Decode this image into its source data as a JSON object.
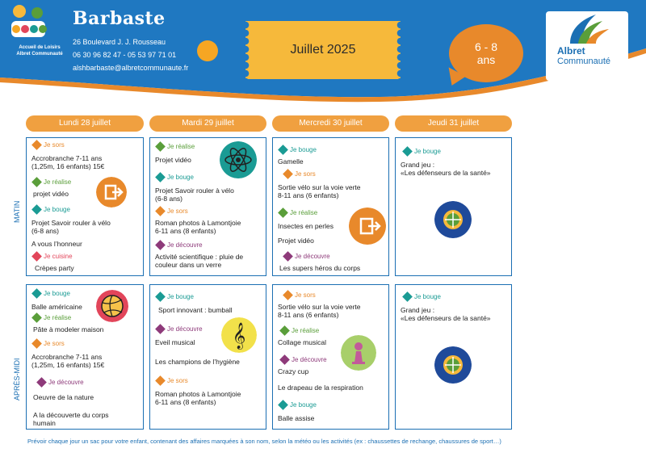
{
  "header": {
    "brand": "Barbaste",
    "address": "26 Boulevard J. J. Rousseau",
    "phones": "06 30 96 82 47 - 05 53 97 71 01",
    "email": "alshbarbaste@albretcommunaute.fr",
    "alsh_logo_line1": "Accueil de Loisirs",
    "alsh_logo_line2": "Albret Communauté",
    "month": "Juillet 2025",
    "age_line1": "6 - 8",
    "age_line2": "ans",
    "partner_line1": "Albret",
    "partner_line2": "Communauté"
  },
  "days": [
    "Lundi 28 juillet",
    "Mardi 29 juillet",
    "Mercredi 30 juillet",
    "Jeudi 31 juillet"
  ],
  "rows": {
    "morning": "MATIN",
    "afternoon": "APRÈS-MIDI"
  },
  "colors": {
    "brand_blue": "#1f78c1",
    "orange": "#e8892b",
    "green": "#5a9e3a",
    "teal": "#1a9b94",
    "purple": "#8e3a7a",
    "red": "#e2455a"
  },
  "schedule": {
    "mon_am": [
      {
        "cat": "Je sors",
        "color": "orange",
        "lines": [
          "Accrobranche 7-11 ans",
          "(1,25m, 16 enfants) 15€"
        ]
      },
      {
        "cat": "Je réalise",
        "color": "green",
        "lines": [
          "projet vidéo"
        ]
      },
      {
        "cat": "Je bouge",
        "color": "teal",
        "lines": [
          "Projet Savoir rouler à vélo",
          "(6-8 ans)",
          "",
          "A vous l’honneur"
        ]
      },
      {
        "cat": "Je cuisine",
        "color": "red",
        "lines": [
          "Crèpes party"
        ]
      }
    ],
    "tue_am": [
      {
        "cat": "Je réalise",
        "color": "green",
        "lines": [
          "Projet vidéo"
        ]
      },
      {
        "cat": "Je bouge",
        "color": "teal",
        "lines": [
          "Projet Savoir rouler à vélo",
          "(6-8 ans)"
        ]
      },
      {
        "cat": "Je sors",
        "color": "orange",
        "lines": [
          "Roman photos à Lamontjoie",
          "6-11 ans (8 enfants)"
        ]
      },
      {
        "cat": "Je découvre",
        "color": "purple",
        "lines": [
          "Activité scientifique : pluie de",
          "couleur dans un verre"
        ]
      }
    ],
    "wed_am": [
      {
        "cat": "Je bouge",
        "color": "teal",
        "lines": [
          "Gamelle"
        ]
      },
      {
        "cat": "Je sors",
        "color": "orange",
        "lines": [
          "Sortie vélo sur la voie verte",
          "8-11 ans (6 enfants)"
        ]
      },
      {
        "cat": "Je réalise",
        "color": "green",
        "lines": [
          "Insectes en perles",
          "",
          "Projet vidéo"
        ]
      },
      {
        "cat": "Je découvre",
        "color": "purple",
        "lines": [
          "Les supers héros du corps"
        ]
      }
    ],
    "thu_am": [
      {
        "cat": "Je bouge",
        "color": "teal",
        "lines": [
          "Grand jeu :",
          "«Les défenseurs de la santé»"
        ]
      }
    ],
    "mon_pm": [
      {
        "cat": "Je bouge",
        "color": "teal",
        "lines": [
          "Balle américaine"
        ]
      },
      {
        "cat": "Je réalise",
        "color": "green",
        "lines": [
          "Pâte à modeler maison"
        ]
      },
      {
        "cat": "Je sors",
        "color": "orange",
        "lines": [
          "Accrobranche 7-11 ans",
          "(1,25m, 16 enfants) 15€"
        ]
      },
      {
        "cat": "Je découvre",
        "color": "purple",
        "lines": [
          "Oeuvre de la nature",
          "",
          "A la découverte du corps",
          "humain"
        ]
      }
    ],
    "tue_pm": [
      {
        "cat": "Je bouge",
        "color": "teal",
        "lines": [
          "Sport innovant : bumball"
        ]
      },
      {
        "cat": "Je découvre",
        "color": "purple",
        "lines": [
          "Eveil musical",
          "",
          "Les champions de l’hygiène"
        ]
      },
      {
        "cat": "Je sors",
        "color": "orange",
        "lines": [
          "Roman photos à Lamontjoie",
          "6-11 ans (8 enfants)"
        ]
      }
    ],
    "wed_pm": [
      {
        "cat": "Je sors",
        "color": "orange",
        "lines": [
          "Sortie vélo sur la voie verte",
          "8-11 ans (6 enfants)"
        ]
      },
      {
        "cat": "Je réalise",
        "color": "green",
        "lines": [
          "Collage musical"
        ]
      },
      {
        "cat": "Je découvre",
        "color": "purple",
        "lines": [
          "Crazy cup",
          "",
          "Le drapeau de la respiration"
        ]
      },
      {
        "cat": "Je bouge",
        "color": "teal",
        "lines": [
          "Balle assise"
        ]
      }
    ],
    "thu_pm": [
      {
        "cat": "Je bouge",
        "color": "teal",
        "lines": [
          "Grand jeu :",
          "«Les défenseurs de la santé»"
        ]
      }
    ]
  },
  "footer": "Prévoir chaque jour un sac pour votre enfant, contenant des affaires marquées à son nom, selon la météo ou les activités (ex : chaussettes de rechange, chaussures de sport…)"
}
